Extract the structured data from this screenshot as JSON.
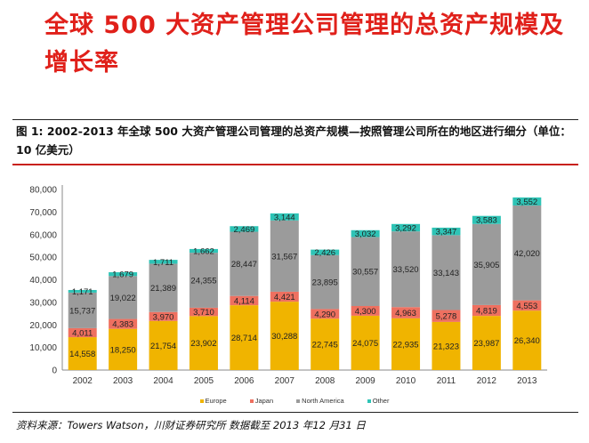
{
  "page_title": "全球 500 大资产管理公司管理的总资产规模及增长率",
  "caption": "图 1:  2002-2013 年全球 500 大资产管理公司管理的总资产规模—按照管理公司所在的地区进行细分（单位：10 亿美元）",
  "source": "资料来源：Towers Watson，川财证券研究所  数据截至 2013 年12 月31 日",
  "chart_data": {
    "type": "bar",
    "stacked": true,
    "categories": [
      "2002",
      "2003",
      "2004",
      "2005",
      "2006",
      "2007",
      "2008",
      "2009",
      "2010",
      "2011",
      "2012",
      "2013"
    ],
    "series": [
      {
        "name": "Europe",
        "color": "#f0b400",
        "values": [
          14558,
          18250,
          21754,
          23902,
          28714,
          30288,
          22745,
          24075,
          22935,
          21323,
          23987,
          26340
        ]
      },
      {
        "name": "Japan",
        "color": "#ee7060",
        "values": [
          4011,
          4383,
          3970,
          3710,
          4114,
          4421,
          4290,
          4300,
          4963,
          5278,
          4819,
          4553
        ]
      },
      {
        "name": "North America",
        "color": "#9b9b9b",
        "values": [
          15737,
          19022,
          21389,
          24355,
          28447,
          31567,
          23895,
          30557,
          33520,
          33143,
          35905,
          42020
        ]
      },
      {
        "name": "Other",
        "color": "#2ec4b6",
        "values": [
          1171,
          1679,
          1711,
          1662,
          2469,
          3144,
          2426,
          3032,
          3292,
          3347,
          3583,
          3552
        ]
      }
    ],
    "yticks": [
      "0",
      "10,000",
      "20,000",
      "30,000",
      "40,000",
      "50,000",
      "60,000",
      "70,000",
      "80,000"
    ],
    "ylim": [
      0,
      80000
    ],
    "legend_position": "bottom",
    "grid": false
  }
}
